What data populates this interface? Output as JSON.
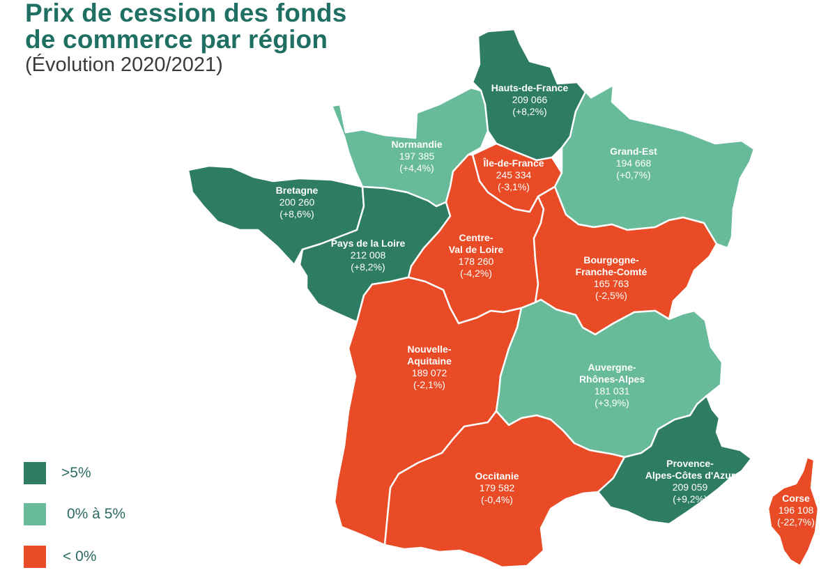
{
  "title_line1": "Prix de cession des fonds",
  "title_line2": "de commerce par région",
  "subtitle": "(Évolution 2020/2021)",
  "colors": {
    "high": "#2e7d62",
    "mid": "#67bb9a",
    "neg": "#e84b25"
  },
  "legend": [
    {
      "key": "high",
      "label": ">5%"
    },
    {
      "key": "mid",
      "label": "0% à 5%"
    },
    {
      "key": "neg",
      "label": "< 0%"
    }
  ],
  "regions": {
    "hauts_de_france": {
      "name": [
        "Hauts-de-France"
      ],
      "price": "209 066",
      "change": "(+8,2%)",
      "category": "high"
    },
    "normandie": {
      "name": [
        "Normandie"
      ],
      "price": "197 385",
      "change": "(+4,4%)",
      "category": "mid"
    },
    "ile_de_france": {
      "name": [
        "Île-de-France"
      ],
      "price": "245 334",
      "change": "(-3,1%)",
      "category": "neg"
    },
    "grand_est": {
      "name": [
        "Grand-Est"
      ],
      "price": "194 668",
      "change": "(+0,7%)",
      "category": "mid"
    },
    "bretagne": {
      "name": [
        "Bretagne"
      ],
      "price": "200 260",
      "change": "(+8,6%)",
      "category": "high"
    },
    "pays_de_la_loire": {
      "name": [
        "Pays de la Loire"
      ],
      "price": "212 008",
      "change": "(+8,2%)",
      "category": "high"
    },
    "centre_val_de_loire": {
      "name": [
        "Centre-",
        "Val de Loire"
      ],
      "price": "178 260",
      "change": "(-4,2%)",
      "category": "neg"
    },
    "bourgogne_franche_comte": {
      "name": [
        "Bourgogne-",
        "Franche-Comté"
      ],
      "price": "165 763",
      "change": "(-2,5%)",
      "category": "neg"
    },
    "nouvelle_aquitaine": {
      "name": [
        "Nouvelle-",
        "Aquitaine"
      ],
      "price": "189 072",
      "change": "(-2,1%)",
      "category": "neg"
    },
    "auvergne_rhone_alpes": {
      "name": [
        "Auvergne-",
        "Rhônes-Alpes"
      ],
      "price": "181 031",
      "change": "(+3,9%)",
      "category": "mid"
    },
    "occitanie": {
      "name": [
        "Occitanie"
      ],
      "price": "179 582",
      "change": "(-0,4%)",
      "category": "neg"
    },
    "paca": {
      "name": [
        "Provence-",
        "Alpes-Côtes d'Azur"
      ],
      "price": "209 059",
      "change": "(+9,2%)",
      "category": "high"
    },
    "corse": {
      "name": [
        "Corse"
      ],
      "price": "196 108",
      "change": "(-22,7%)",
      "category": "neg"
    }
  }
}
